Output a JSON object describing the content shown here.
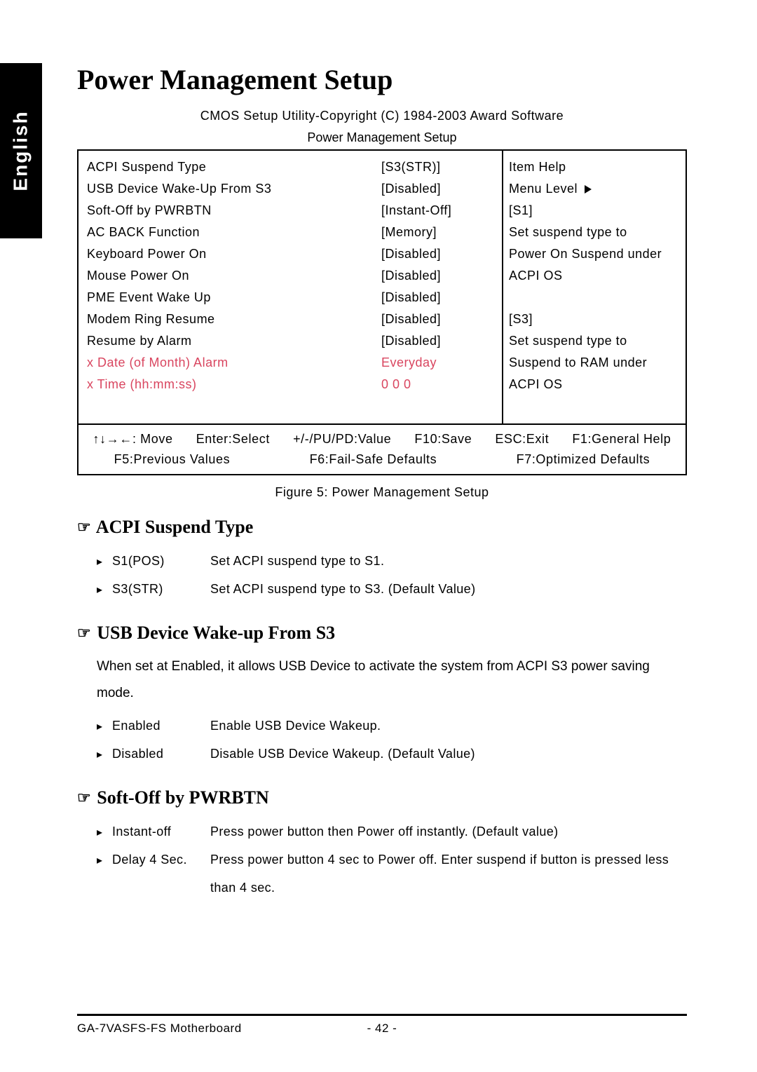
{
  "language_tab": "English",
  "page_title": "Power Management Setup",
  "cmos_header": "CMOS Setup Utility-Copyright (C) 1984-2003 Award Software",
  "bios_subtitle": "Power Management Setup",
  "bios": {
    "rows": [
      {
        "label": "ACPI Suspend Type",
        "value": "[S3(STR)]",
        "disabled": false
      },
      {
        "label": "USB Device Wake-Up From S3",
        "value": "[Disabled]",
        "disabled": false
      },
      {
        "label": "Soft-Off by PWRBTN",
        "value": "[Instant-Off]",
        "disabled": false
      },
      {
        "label": "AC BACK Function",
        "value": "[Memory]",
        "disabled": false
      },
      {
        "label": "Keyboard Power On",
        "value": "[Disabled]",
        "disabled": false
      },
      {
        "label": "Mouse Power On",
        "value": "[Disabled]",
        "disabled": false
      },
      {
        "label": "PME Event Wake Up",
        "value": "[Disabled]",
        "disabled": false
      },
      {
        "label": "Modem Ring Resume",
        "value": "[Disabled]",
        "disabled": false
      },
      {
        "label": "Resume by Alarm",
        "value": "[Disabled]",
        "disabled": false
      },
      {
        "label": "x Date (of Month) Alarm",
        "value": "Everyday",
        "disabled": true
      },
      {
        "label": "x Time (hh:mm:ss)",
        "value": "0   0   0",
        "disabled": true
      }
    ],
    "help": {
      "title": "Item Help",
      "menu_level": "Menu Level",
      "lines": [
        "[S1]",
        "Set suspend type to",
        "Power On Suspend under",
        "ACPI OS",
        "",
        "[S3]",
        "Set suspend type to",
        "Suspend to RAM under",
        "ACPI OS"
      ]
    },
    "keys_line1": [
      "↑↓→←: Move",
      "Enter:Select",
      "+/-/PU/PD:Value",
      "F10:Save",
      "ESC:Exit",
      "F1:General Help"
    ],
    "keys_line2": [
      "F5:Previous Values",
      "F6:Fail-Safe Defaults",
      "F7:Optimized Defaults"
    ]
  },
  "figure_caption": "Figure 5: Power Management Setup",
  "sections": [
    {
      "heading": "ACPI Suspend Type",
      "body": "",
      "options": [
        {
          "name": "S1(POS)",
          "desc": "Set ACPI suspend type to S1."
        },
        {
          "name": "S3(STR)",
          "desc": "Set ACPI suspend type to S3. (Default Value)"
        }
      ]
    },
    {
      "heading": "USB Device Wake-up From S3",
      "body": "When set at Enabled, it allows USB Device to activate the system from ACPI S3 power saving mode.",
      "options": [
        {
          "name": "Enabled",
          "desc": "Enable USB Device Wakeup."
        },
        {
          "name": "Disabled",
          "desc": "Disable USB Device Wakeup. (Default Value)"
        }
      ]
    },
    {
      "heading": "Soft-Off by PWRBTN",
      "body": "",
      "options": [
        {
          "name": "Instant-off",
          "desc": "Press power button then Power off instantly. (Default value)"
        },
        {
          "name": "Delay 4 Sec.",
          "desc": "Press power button 4 sec to Power off. Enter suspend if button is pressed less than 4 sec."
        }
      ]
    }
  ],
  "footer": {
    "left": "GA-7VASFS-FS Motherboard",
    "center": "- 42 -"
  },
  "colors": {
    "text": "#000000",
    "disabled": "#d9455f",
    "background": "#ffffff"
  },
  "typography": {
    "title_fontsize_pt": 30,
    "heading_fontsize_pt": 20,
    "body_fontsize_pt": 14,
    "bios_fontsize_pt": 13
  }
}
